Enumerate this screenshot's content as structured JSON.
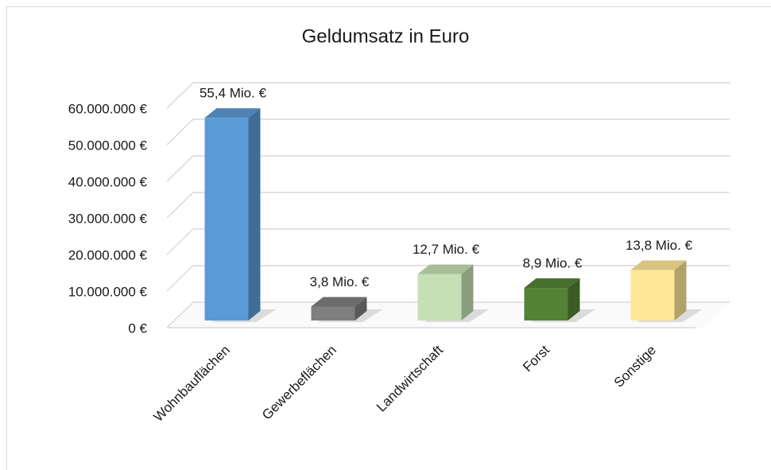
{
  "chart_data": {
    "type": "bar3d",
    "title": "Geldumsatz in Euro",
    "categories": [
      "Wohnbauflächen",
      "Gewerbeflächen",
      "Landwirtschaft",
      "Forst",
      "Sonstige"
    ],
    "values": [
      55400000,
      3800000,
      12700000,
      8900000,
      13800000
    ],
    "value_labels": [
      "55,4 Mio. €",
      "3,8 Mio. €",
      "12,7 Mio. €",
      "8,9 Mio. €",
      "13,8 Mio. €"
    ],
    "colors": [
      "#5b9bd5",
      "#7f7f7f",
      "#c5e0b4",
      "#548235",
      "#ffe699"
    ],
    "ylim": [
      0,
      60000000
    ],
    "yticks": [
      {
        "value": 0,
        "label": "0 €"
      },
      {
        "value": 10000000,
        "label": "10.000.000 €"
      },
      {
        "value": 20000000,
        "label": "20.000.000 €"
      },
      {
        "value": 30000000,
        "label": "30.000.000 €"
      },
      {
        "value": 40000000,
        "label": "40.000.000 €"
      },
      {
        "value": 50000000,
        "label": "50.000.000 €"
      },
      {
        "value": 60000000,
        "label": "60.000.000 €"
      }
    ],
    "grid": true
  }
}
